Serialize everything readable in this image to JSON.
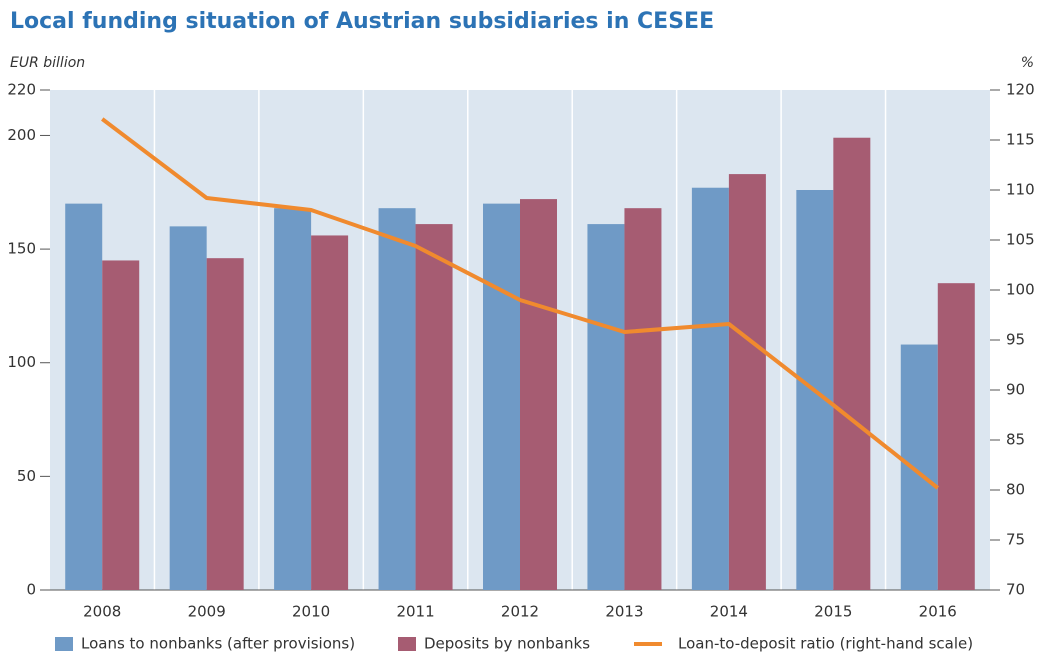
{
  "chart_data": {
    "type": "bar_line",
    "title": "Local funding situation of Austrian subsidiaries in CESEE",
    "y_label": "EUR billion",
    "y2_label": "%",
    "categories": [
      "2008",
      "2009",
      "2010",
      "2011",
      "2012",
      "2013",
      "2014",
      "2015",
      "2016"
    ],
    "series": [
      {
        "name": "Loans to nonbanks (after provisions)",
        "type": "bar",
        "color": "#6f9ac6",
        "values": [
          170,
          160,
          168,
          168,
          170,
          161,
          177,
          176,
          108
        ]
      },
      {
        "name": "Deposits by nonbanks",
        "type": "bar",
        "color": "#a65c72",
        "values": [
          145,
          146,
          156,
          161,
          172,
          168,
          183,
          199,
          135
        ]
      },
      {
        "name": "Loan-to-deposit ratio (right-hand scale)",
        "type": "line",
        "axis": "y2",
        "color": "#f08a2e",
        "values": [
          117.1,
          109.2,
          108,
          104.4,
          99,
          95.8,
          96.6,
          88.5,
          80.2
        ]
      }
    ],
    "ylim": [
      0,
      220
    ],
    "yticks": [
      0,
      50,
      100,
      150,
      200,
      220
    ],
    "y2lim": [
      70,
      120
    ],
    "y2ticks": [
      70,
      75,
      80,
      85,
      90,
      95,
      100,
      105,
      110,
      115,
      120
    ],
    "grid": false,
    "legend": "bottom"
  }
}
